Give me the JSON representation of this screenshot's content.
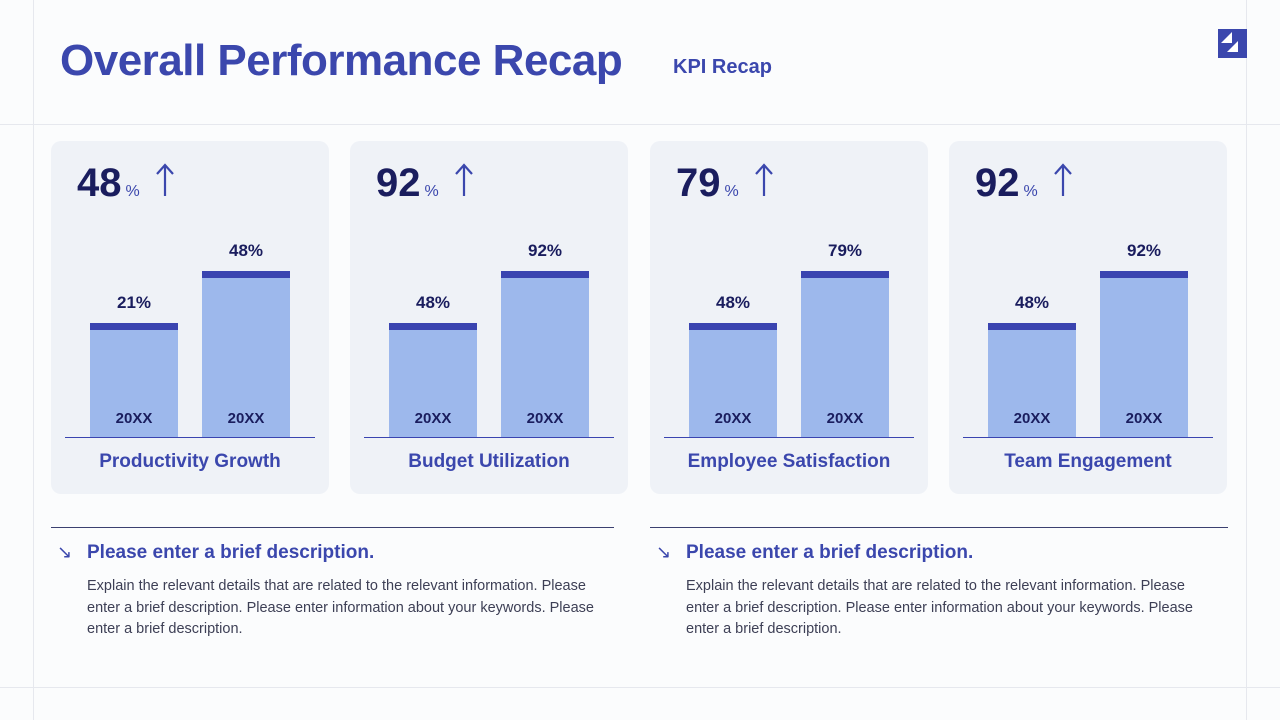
{
  "header": {
    "title": "Overall Performance Recap",
    "subtitle": "KPI Recap",
    "logo": "brand-logo"
  },
  "colors": {
    "accent": "#3b47ad",
    "bar_fill": "#9db8ec",
    "bar_cap": "#3a44b0",
    "card_bg": "#eff2f7"
  },
  "chart_data": [
    {
      "type": "bar",
      "title": "Productivity Growth",
      "headline": "48",
      "headline_unit": "%",
      "trend": "up",
      "categories": [
        "20XX",
        "20XX"
      ],
      "values": [
        21,
        48
      ],
      "labels": [
        "21%",
        "48%"
      ]
    },
    {
      "type": "bar",
      "title": "Budget Utilization",
      "headline": "92",
      "headline_unit": "%",
      "trend": "up",
      "categories": [
        "20XX",
        "20XX"
      ],
      "values": [
        48,
        92
      ],
      "labels": [
        "48%",
        "92%"
      ]
    },
    {
      "type": "bar",
      "title": "Employee Satisfaction",
      "headline": "79",
      "headline_unit": "%",
      "trend": "up",
      "categories": [
        "20XX",
        "20XX"
      ],
      "values": [
        48,
        79
      ],
      "labels": [
        "48%",
        "79%"
      ]
    },
    {
      "type": "bar",
      "title": "Team Engagement",
      "headline": "92",
      "headline_unit": "%",
      "trend": "up",
      "categories": [
        "20XX",
        "20XX"
      ],
      "values": [
        48,
        92
      ],
      "labels": [
        "48%",
        "92%"
      ]
    }
  ],
  "descriptions": [
    {
      "heading": "Please enter a brief description.",
      "body": "Explain the relevant details that are related to the relevant information. Please enter a brief description. Please enter information about your keywords. Please enter a brief description."
    },
    {
      "heading": "Please enter a brief description.",
      "body": "Explain the relevant details that are related to the relevant information. Please enter a brief description. Please enter information about your keywords. Please enter a brief description."
    }
  ]
}
